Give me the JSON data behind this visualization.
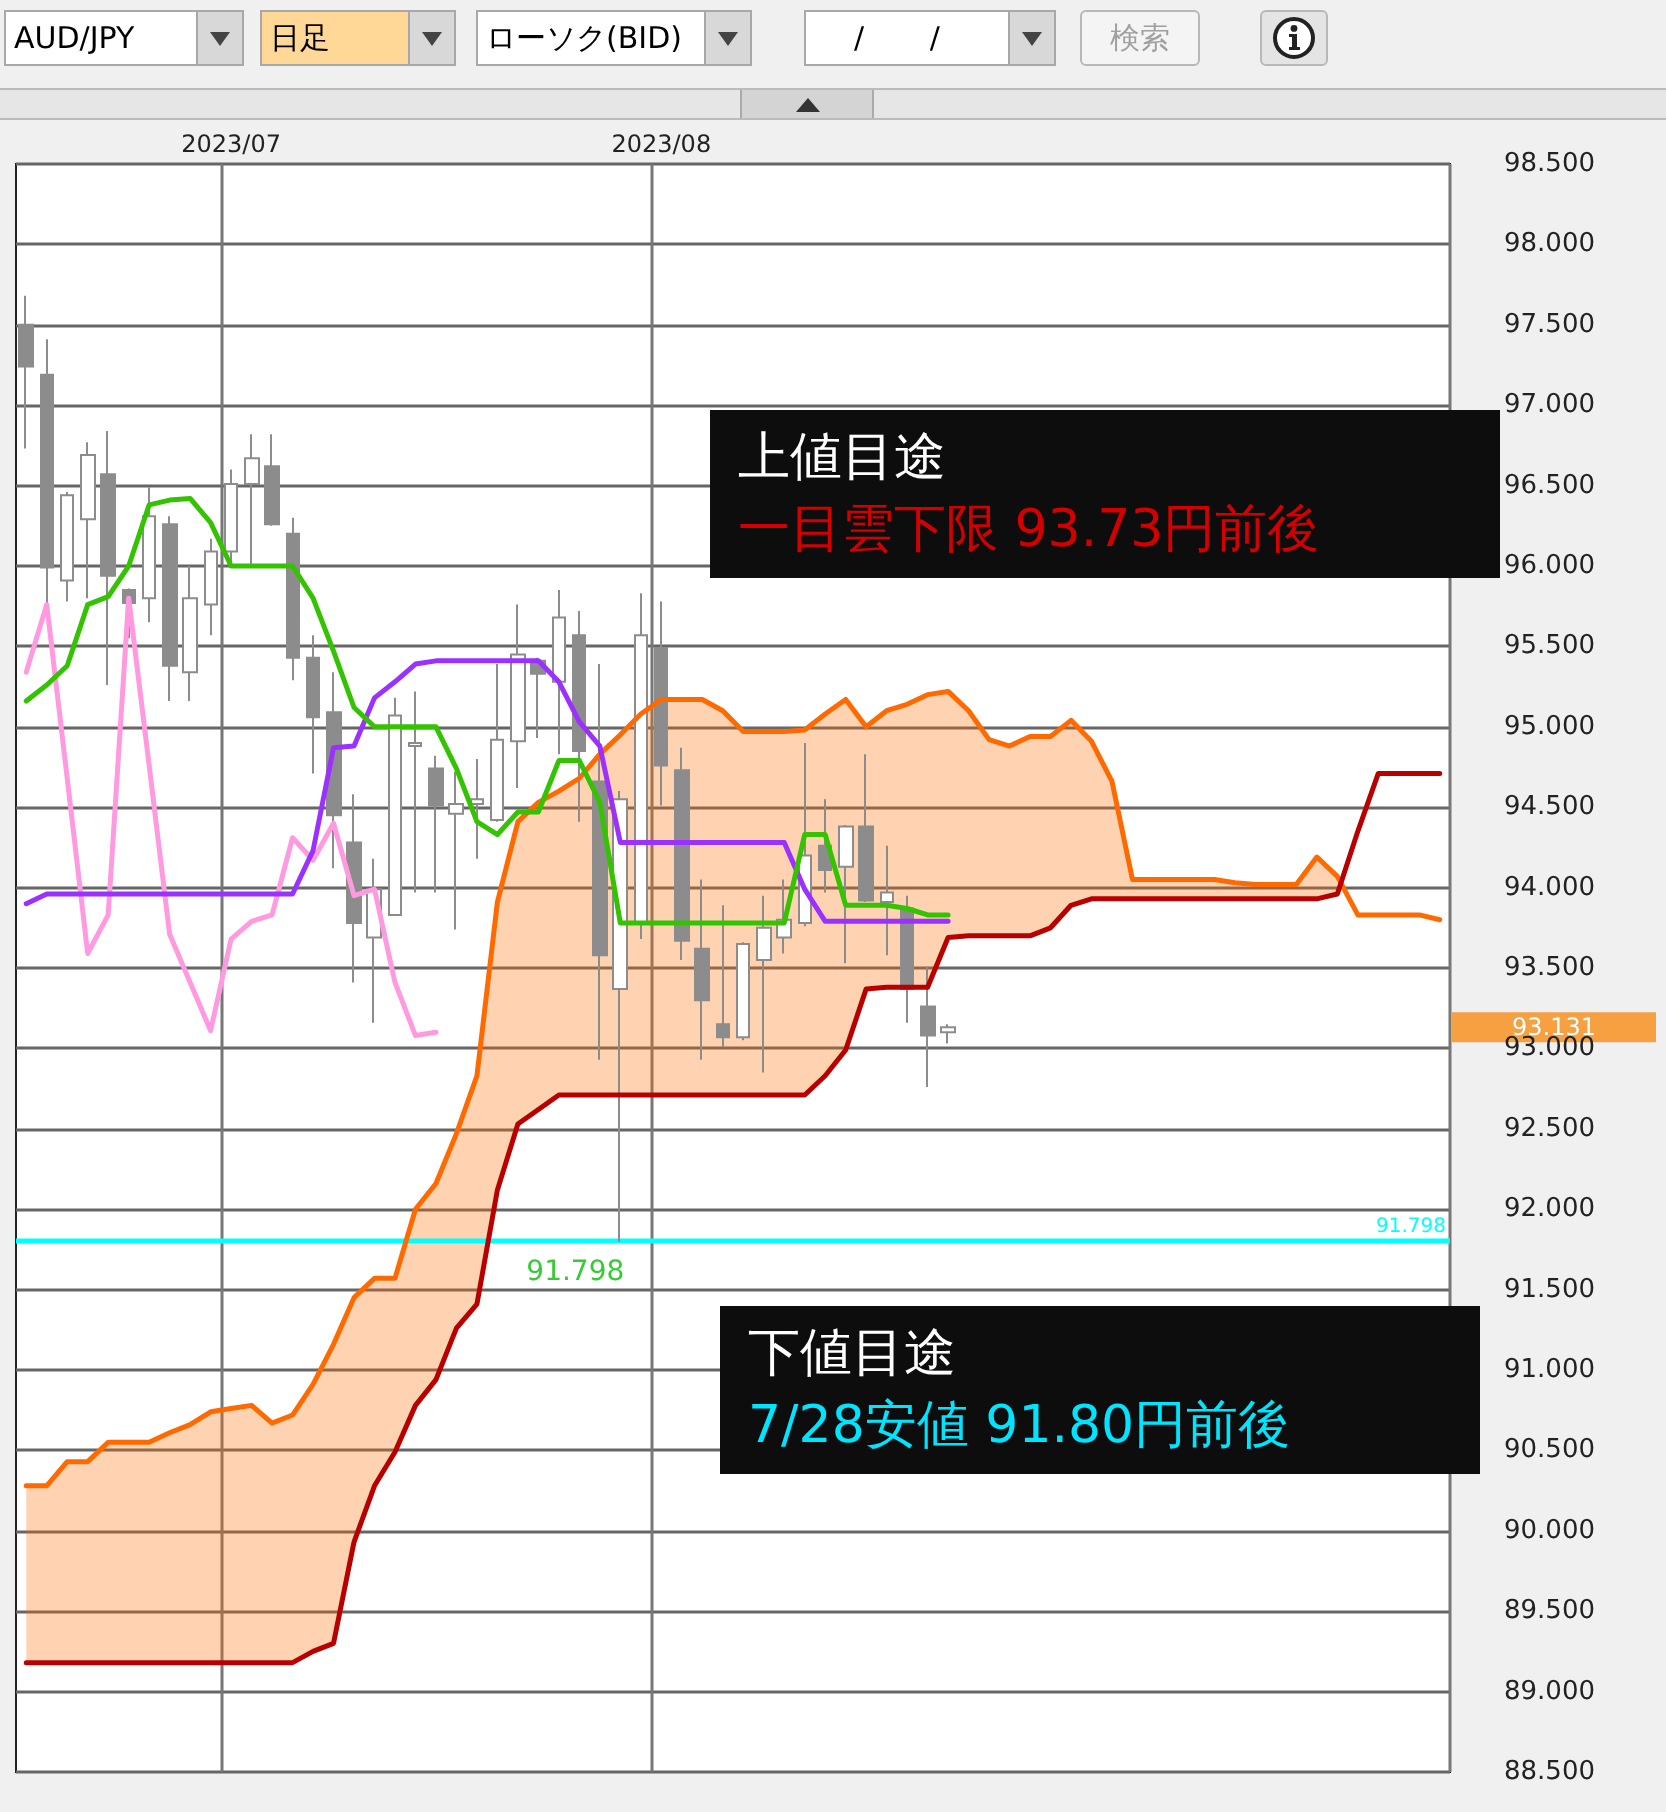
{
  "chart_data": {
    "type": "candlestick",
    "categories": [
      null,
      null,
      null,
      null,
      null,
      null,
      null,
      null,
      null,
      null,
      "2023/07",
      null,
      null,
      null,
      null,
      null,
      null,
      null,
      null,
      null,
      null,
      null,
      null,
      null,
      null,
      null,
      null,
      null,
      null,
      null,
      null,
      "2023/08",
      null,
      null,
      null,
      null,
      null,
      null,
      null,
      null,
      null,
      null,
      null,
      null,
      null,
      null,
      null,
      null,
      null,
      null,
      null,
      null,
      null,
      null,
      null,
      null,
      null,
      null,
      null,
      null,
      null,
      null,
      null,
      null,
      null,
      null,
      null,
      null,
      null,
      null
    ],
    "ohlc": [
      [
        97.5,
        97.68,
        96.73,
        97.24
      ],
      [
        97.19,
        97.41,
        95.76,
        95.99
      ],
      [
        95.91,
        96.46,
        95.78,
        96.44
      ],
      [
        96.29,
        96.77,
        95.8,
        96.69
      ],
      [
        96.57,
        96.84,
        95.26,
        95.94
      ],
      [
        95.85,
        95.86,
        95.55,
        95.77
      ],
      [
        95.8,
        96.49,
        95.65,
        96.31
      ],
      [
        96.26,
        96.31,
        95.16,
        95.38
      ],
      [
        95.34,
        96.0,
        95.16,
        95.8
      ],
      [
        95.76,
        96.17,
        95.57,
        96.09
      ],
      [
        96.09,
        96.6,
        96.0,
        96.51
      ],
      [
        96.51,
        96.82,
        96.0,
        96.67
      ],
      [
        96.62,
        96.82,
        96.25,
        96.26
      ],
      [
        96.2,
        96.3,
        95.29,
        95.43
      ],
      [
        95.43,
        95.57,
        94.71,
        95.06
      ],
      [
        95.09,
        95.34,
        94.12,
        94.45
      ],
      [
        94.28,
        94.58,
        93.41,
        93.78
      ],
      [
        93.69,
        94.18,
        93.16,
        93.99
      ],
      [
        93.83,
        95.18,
        93.83,
        95.07
      ],
      [
        94.88,
        95.22,
        93.97,
        94.9
      ],
      [
        94.74,
        94.82,
        93.97,
        94.51
      ],
      [
        94.46,
        94.72,
        93.74,
        94.52
      ],
      [
        94.52,
        94.8,
        94.18,
        94.55
      ],
      [
        94.42,
        95.39,
        94.41,
        94.92
      ],
      [
        94.91,
        95.76,
        94.62,
        95.45
      ],
      [
        95.41,
        95.43,
        94.93,
        95.33
      ],
      [
        95.28,
        95.85,
        94.83,
        95.68
      ],
      [
        95.57,
        95.72,
        94.41,
        94.85
      ],
      [
        94.66,
        95.39,
        92.93,
        93.58
      ],
      [
        93.37,
        94.6,
        91.798,
        94.55
      ],
      [
        93.78,
        95.83,
        93.68,
        95.57
      ],
      [
        95.49,
        95.78,
        94.51,
        94.76
      ],
      [
        94.73,
        94.87,
        93.55,
        93.67
      ],
      [
        93.62,
        94.05,
        92.93,
        93.3
      ],
      [
        93.15,
        93.89,
        93.01,
        93.07
      ],
      [
        93.07,
        93.66,
        93.05,
        93.65
      ],
      [
        93.55,
        93.95,
        92.85,
        93.75
      ],
      [
        93.69,
        94.05,
        93.59,
        93.8
      ],
      [
        93.78,
        94.9,
        93.76,
        94.2
      ],
      [
        94.26,
        94.55,
        93.97,
        94.11
      ],
      [
        94.13,
        94.39,
        93.53,
        94.38
      ],
      [
        94.38,
        94.83,
        93.91,
        93.92
      ],
      [
        93.91,
        94.26,
        93.58,
        93.97
      ],
      [
        93.87,
        93.95,
        93.16,
        93.37
      ],
      [
        93.26,
        93.51,
        92.76,
        93.08
      ],
      [
        93.1,
        93.15,
        93.03,
        93.131
      ],
      null,
      null,
      null,
      null,
      null,
      null,
      null,
      null,
      null,
      null,
      null,
      null,
      null,
      null,
      null,
      null,
      null,
      null,
      null,
      null,
      null,
      null,
      null,
      null
    ],
    "series": [
      {
        "type": "line",
        "color": "#ff6a00",
        "lower": [
          89.18,
          89.18,
          89.18,
          89.18,
          89.18,
          89.18,
          89.18,
          89.18,
          89.18,
          89.18,
          89.18,
          89.18,
          89.18,
          89.18,
          89.25,
          89.3,
          89.93,
          90.28,
          90.49,
          90.78,
          90.94,
          91.26,
          91.41,
          92.12,
          92.53,
          92.62,
          92.71,
          92.71,
          92.71,
          92.71,
          92.71,
          92.71,
          92.71,
          92.71,
          92.71,
          92.71,
          92.71,
          92.71,
          92.71,
          92.83,
          92.99,
          93.37,
          93.38,
          93.38,
          93.38,
          93.69,
          93.7,
          93.7,
          93.7,
          93.7,
          93.75,
          93.89,
          93.93,
          93.93,
          93.93,
          93.93,
          93.93,
          93.93,
          93.93,
          93.93,
          93.93,
          93.93,
          93.93,
          93.93,
          93.96,
          null,
          null,
          null,
          null,
          null
        ],
        "upper": [
          90.28,
          90.28,
          90.43,
          90.43,
          90.55,
          90.55,
          90.55,
          90.61,
          90.66,
          90.74,
          90.76,
          90.78,
          90.67,
          90.72,
          90.91,
          91.16,
          91.45,
          91.57,
          91.57,
          92.0,
          92.16,
          92.47,
          92.83,
          93.91,
          94.41,
          94.53,
          94.6,
          94.68,
          94.83,
          94.95,
          95.08,
          95.17,
          95.17,
          95.17,
          95.1,
          94.97,
          94.97,
          94.97,
          94.98,
          95.08,
          95.17,
          95.0,
          95.1,
          95.14,
          95.2,
          95.22,
          95.1,
          94.92,
          94.88,
          94.94,
          94.94,
          95.04,
          94.91,
          94.66,
          94.05,
          94.05,
          94.05,
          94.05,
          94.05,
          94.03,
          94.02,
          94.02,
          94.02,
          94.19,
          94.07,
          null,
          null,
          null,
          null,
          null
        ],
        "values": [
          90.28,
          90.28,
          90.43,
          90.43,
          90.55,
          90.55,
          90.55,
          90.61,
          90.66,
          90.74,
          90.76,
          90.78,
          90.67,
          90.72,
          90.91,
          91.16,
          91.45,
          91.57,
          91.57,
          92.0,
          92.16,
          92.47,
          92.83,
          93.91,
          94.41,
          94.53,
          94.6,
          94.68,
          94.83,
          94.95,
          95.08,
          95.17,
          95.17,
          95.17,
          95.1,
          94.97,
          94.97,
          94.97,
          94.98,
          95.08,
          95.17,
          95.0,
          95.1,
          95.14,
          95.2,
          95.22,
          95.1,
          94.92,
          94.88,
          94.94,
          94.94,
          95.04,
          94.91,
          94.66,
          94.05,
          94.05,
          94.05,
          94.05,
          94.05,
          94.03,
          94.02,
          94.02,
          94.02,
          94.19,
          94.07,
          93.83,
          93.83,
          93.83,
          93.83,
          93.8
        ]
      },
      {
        "type": "line",
        "color": "#b80000",
        "values": [
          89.18,
          89.18,
          89.18,
          89.18,
          89.18,
          89.18,
          89.18,
          89.18,
          89.18,
          89.18,
          89.18,
          89.18,
          89.18,
          89.18,
          89.25,
          89.3,
          89.93,
          90.28,
          90.49,
          90.78,
          90.94,
          91.26,
          91.41,
          92.12,
          92.53,
          92.62,
          92.71,
          92.71,
          92.71,
          92.71,
          92.71,
          92.71,
          92.71,
          92.71,
          92.71,
          92.71,
          92.71,
          92.71,
          92.71,
          92.83,
          92.99,
          93.37,
          93.38,
          93.38,
          93.38,
          93.69,
          93.7,
          93.7,
          93.7,
          93.7,
          93.75,
          93.89,
          93.93,
          93.93,
          93.93,
          93.93,
          93.93,
          93.93,
          93.93,
          93.93,
          93.93,
          93.93,
          93.93,
          93.93,
          93.96,
          94.35,
          94.71,
          94.71,
          94.71,
          94.71
        ]
      },
      {
        "type": "line",
        "color": "#ff99e0",
        "values": [
          95.34,
          95.76,
          94.68,
          93.59,
          93.83,
          95.8,
          94.76,
          93.71,
          93.41,
          93.11,
          93.68,
          93.79,
          93.83,
          94.31,
          94.17,
          94.4,
          93.95,
          93.99,
          93.41,
          93.08,
          93.1,
          null,
          null,
          null,
          null,
          null,
          null,
          null,
          null,
          null,
          null,
          null,
          null,
          null,
          null,
          null,
          null,
          null,
          null,
          null,
          null,
          null,
          null,
          null,
          null,
          null,
          null,
          null,
          null,
          null,
          null,
          null,
          null,
          null,
          null,
          null,
          null,
          null,
          null,
          null,
          null,
          null,
          null,
          null,
          null,
          null,
          null,
          null,
          null,
          null
        ]
      },
      {
        "type": "line",
        "color": "#9b30ff",
        "values": [
          93.9,
          93.96,
          93.96,
          93.96,
          93.96,
          93.96,
          93.96,
          93.96,
          93.96,
          93.96,
          93.96,
          93.96,
          93.96,
          93.96,
          94.23,
          94.87,
          94.88,
          95.18,
          95.28,
          95.39,
          95.41,
          95.41,
          95.41,
          95.41,
          95.41,
          95.41,
          95.28,
          95.03,
          94.88,
          94.28,
          94.28,
          94.28,
          94.28,
          94.28,
          94.28,
          94.28,
          94.28,
          94.28,
          93.99,
          93.79,
          93.79,
          93.79,
          93.79,
          93.79,
          93.79,
          93.79,
          null,
          null,
          null,
          null,
          null,
          null,
          null,
          null,
          null,
          null,
          null,
          null,
          null,
          null,
          null,
          null,
          null,
          null,
          null,
          null,
          null,
          null,
          null,
          null
        ]
      },
      {
        "type": "line",
        "color": "#33c300",
        "values": [
          95.16,
          95.26,
          95.38,
          95.76,
          95.81,
          96.0,
          96.38,
          96.41,
          96.42,
          96.27,
          96.0,
          96.0,
          96.0,
          96.0,
          95.8,
          95.47,
          95.12,
          95.0,
          95.0,
          95.0,
          95.0,
          94.74,
          94.41,
          94.33,
          94.47,
          94.47,
          94.79,
          94.79,
          94.53,
          93.78,
          93.78,
          93.78,
          93.78,
          93.78,
          93.78,
          93.78,
          93.78,
          93.78,
          94.33,
          94.33,
          93.89,
          93.89,
          93.89,
          93.87,
          93.83,
          93.83,
          null,
          null,
          null,
          null,
          null,
          null,
          null,
          null,
          null,
          null,
          null,
          null,
          null,
          null,
          null,
          null,
          null,
          null,
          null,
          null,
          null,
          null,
          null,
          null
        ]
      }
    ],
    "ylim": [
      88.5,
      98.5
    ],
    "yticks": [
      {
        "value": 88.5,
        "label": "88.500"
      },
      {
        "value": 89,
        "label": "89.000"
      },
      {
        "value": 89.5,
        "label": "89.500"
      },
      {
        "value": 90,
        "label": "90.000"
      },
      {
        "value": 90.5,
        "label": "90.500"
      },
      {
        "value": 91,
        "label": "91.000"
      },
      {
        "value": 91.5,
        "label": "91.500"
      },
      {
        "value": 92,
        "label": "92.000"
      },
      {
        "value": 92.5,
        "label": "92.500"
      },
      {
        "value": 93,
        "label": "93.000"
      },
      {
        "value": 93.5,
        "label": "93.500"
      },
      {
        "value": 94,
        "label": "94.000"
      },
      {
        "value": 94.5,
        "label": "94.500"
      },
      {
        "value": 95,
        "label": "95.000"
      },
      {
        "value": 95.5,
        "label": "95.500"
      },
      {
        "value": 96,
        "label": "96.000"
      },
      {
        "value": 96.5,
        "label": "96.500"
      },
      {
        "value": 97,
        "label": "97.000"
      },
      {
        "value": 97.5,
        "label": "97.500"
      },
      {
        "value": 98,
        "label": "98.000"
      },
      {
        "value": 98.5,
        "label": "98.500"
      }
    ],
    "grid": true,
    "ref_lines": [
      {
        "axis": "y",
        "value": 91.798,
        "label": "91.798",
        "color": "#00ffff"
      }
    ],
    "annotations": [
      "AUD/JPY",
      "日足",
      "ローソク(BID)",
      "/ /",
      "検索",
      "上値目途",
      "一目雲下限 93.73円前後",
      "下値目途",
      "7/28安値 91.80円前後",
      {
        "text": "91.798",
        "y": 91.798
      },
      "93.131"
    ]
  }
}
